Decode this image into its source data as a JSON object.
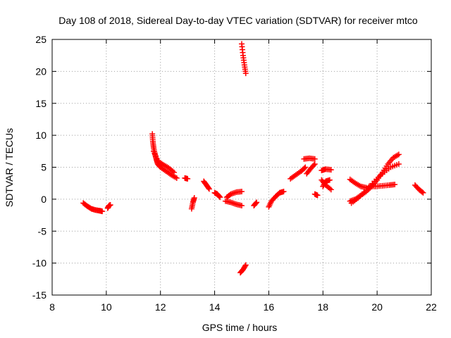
{
  "chart_data": {
    "type": "scatter",
    "title": "Day 108 of 2018, Sidereal Day-to-day VTEC variation (SDTVAR) for receiver mtco",
    "xlabel": "GPS time / hours",
    "ylabel": "SDTVAR / TECUs",
    "xlim": [
      8,
      22
    ],
    "ylim": [
      -15,
      25
    ],
    "xticks": [
      8,
      10,
      12,
      14,
      16,
      18,
      20,
      22
    ],
    "yticks": [
      -15,
      -10,
      -5,
      0,
      5,
      10,
      15,
      20,
      25
    ],
    "grid": true,
    "marker": "+",
    "color": "#ff0000",
    "segments": [
      {
        "x": [
          9.15,
          9.3,
          9.45,
          9.6,
          9.75,
          9.85
        ],
        "y": [
          -0.6,
          -1.1,
          -1.5,
          -1.7,
          -1.8,
          -1.9
        ]
      },
      {
        "x": [
          10.05,
          10.1,
          10.15
        ],
        "y": [
          -1.4,
          -1.0,
          -0.9
        ]
      },
      {
        "x": [
          11.7,
          11.72,
          11.75,
          11.8,
          11.85,
          11.9,
          12.0,
          12.2,
          12.4,
          12.6
        ],
        "y": [
          10.2,
          9.0,
          8.0,
          7.0,
          6.2,
          5.5,
          5.0,
          4.4,
          3.8,
          3.3
        ]
      },
      {
        "x": [
          11.75,
          11.9,
          12.1,
          12.3,
          12.5
        ],
        "y": [
          7.5,
          6.0,
          5.4,
          4.9,
          4.2
        ]
      },
      {
        "x": [
          12.9,
          13.0
        ],
        "y": [
          3.3,
          3.2
        ]
      },
      {
        "x": [
          13.15,
          13.2,
          13.25
        ],
        "y": [
          -1.5,
          -0.5,
          0.2
        ]
      },
      {
        "x": [
          13.6,
          13.7,
          13.8
        ],
        "y": [
          2.8,
          2.2,
          1.6
        ]
      },
      {
        "x": [
          14.0,
          14.1,
          14.2
        ],
        "y": [
          1.0,
          0.8,
          0.3
        ]
      },
      {
        "x": [
          14.45,
          14.6,
          14.8,
          15.0
        ],
        "y": [
          0.3,
          0.8,
          1.1,
          1.2
        ]
      },
      {
        "x": [
          14.4,
          14.6,
          14.8,
          15.0
        ],
        "y": [
          -0.3,
          -0.5,
          -0.8,
          -1.0
        ]
      },
      {
        "x": [
          15.0,
          15.05,
          15.1,
          15.15
        ],
        "y": [
          24.3,
          22.5,
          21.0,
          19.7
        ]
      },
      {
        "x": [
          14.95,
          15.05,
          15.15
        ],
        "y": [
          -11.5,
          -11.0,
          -10.3
        ]
      },
      {
        "x": [
          15.45,
          15.55
        ],
        "y": [
          -1.0,
          -0.5
        ]
      },
      {
        "x": [
          16.0,
          16.1,
          16.25,
          16.4,
          16.55
        ],
        "y": [
          -1.2,
          -0.3,
          0.4,
          1.0,
          1.2
        ]
      },
      {
        "x": [
          16.8,
          17.0,
          17.2,
          17.35
        ],
        "y": [
          3.2,
          3.8,
          4.4,
          5.0
        ]
      },
      {
        "x": [
          17.3,
          17.5,
          17.7
        ],
        "y": [
          6.3,
          6.4,
          6.3
        ]
      },
      {
        "x": [
          17.4,
          17.55,
          17.7
        ],
        "y": [
          4.0,
          4.8,
          5.5
        ]
      },
      {
        "x": [
          17.7,
          17.8
        ],
        "y": [
          0.8,
          0.6
        ]
      },
      {
        "x": [
          17.95,
          18.1,
          18.3
        ],
        "y": [
          4.5,
          4.7,
          4.6
        ]
      },
      {
        "x": [
          17.95,
          18.1,
          18.3
        ],
        "y": [
          3.0,
          2.2,
          1.5
        ]
      },
      {
        "x": [
          18.0,
          18.1,
          18.25
        ],
        "y": [
          2.0,
          2.8,
          3.0
        ]
      },
      {
        "x": [
          19.0,
          19.2,
          19.4,
          19.6
        ],
        "y": [
          3.1,
          2.5,
          2.0,
          1.8
        ]
      },
      {
        "x": [
          19.0,
          19.2,
          19.4,
          19.6,
          19.8,
          20.0,
          20.2,
          20.4,
          20.6,
          20.8
        ],
        "y": [
          -0.3,
          0.0,
          0.6,
          1.2,
          2.0,
          3.0,
          4.2,
          5.5,
          6.5,
          7.0
        ]
      },
      {
        "x": [
          19.05,
          19.3,
          19.6,
          19.9,
          20.2,
          20.5,
          20.8
        ],
        "y": [
          -0.6,
          0.2,
          1.4,
          2.8,
          4.0,
          5.0,
          5.5
        ]
      },
      {
        "x": [
          19.7,
          19.95,
          20.2,
          20.45,
          20.65
        ],
        "y": [
          2.0,
          2.0,
          2.1,
          2.2,
          2.3
        ]
      },
      {
        "x": [
          21.4,
          21.55,
          21.7
        ],
        "y": [
          2.2,
          1.5,
          1.0
        ]
      }
    ]
  }
}
